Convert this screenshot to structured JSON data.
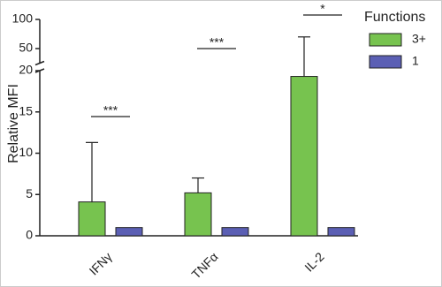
{
  "chart_data": {
    "type": "bar",
    "y_label": "Relative MFI",
    "categories": [
      "IFNγ",
      "TNFα",
      "IL-2"
    ],
    "series": [
      {
        "name": "3+",
        "color": "#77c34f",
        "values": [
          4.1,
          5.2,
          19.3
        ],
        "errors": [
          7.2,
          1.8,
          50.7
        ]
      },
      {
        "name": "1",
        "color": "#5b5fb4",
        "values": [
          1,
          1,
          1
        ]
      }
    ],
    "ylim": [
      0,
      100
    ],
    "axis_break": [
      20,
      25
    ],
    "yticks": [
      0,
      5,
      10,
      15,
      20,
      50,
      100
    ],
    "legend_title": "Functions",
    "legend": "right",
    "annotations": [
      {
        "text": "***",
        "category": 0
      },
      {
        "text": "***",
        "category": 1
      },
      {
        "text": "*",
        "category": 2
      }
    ]
  }
}
